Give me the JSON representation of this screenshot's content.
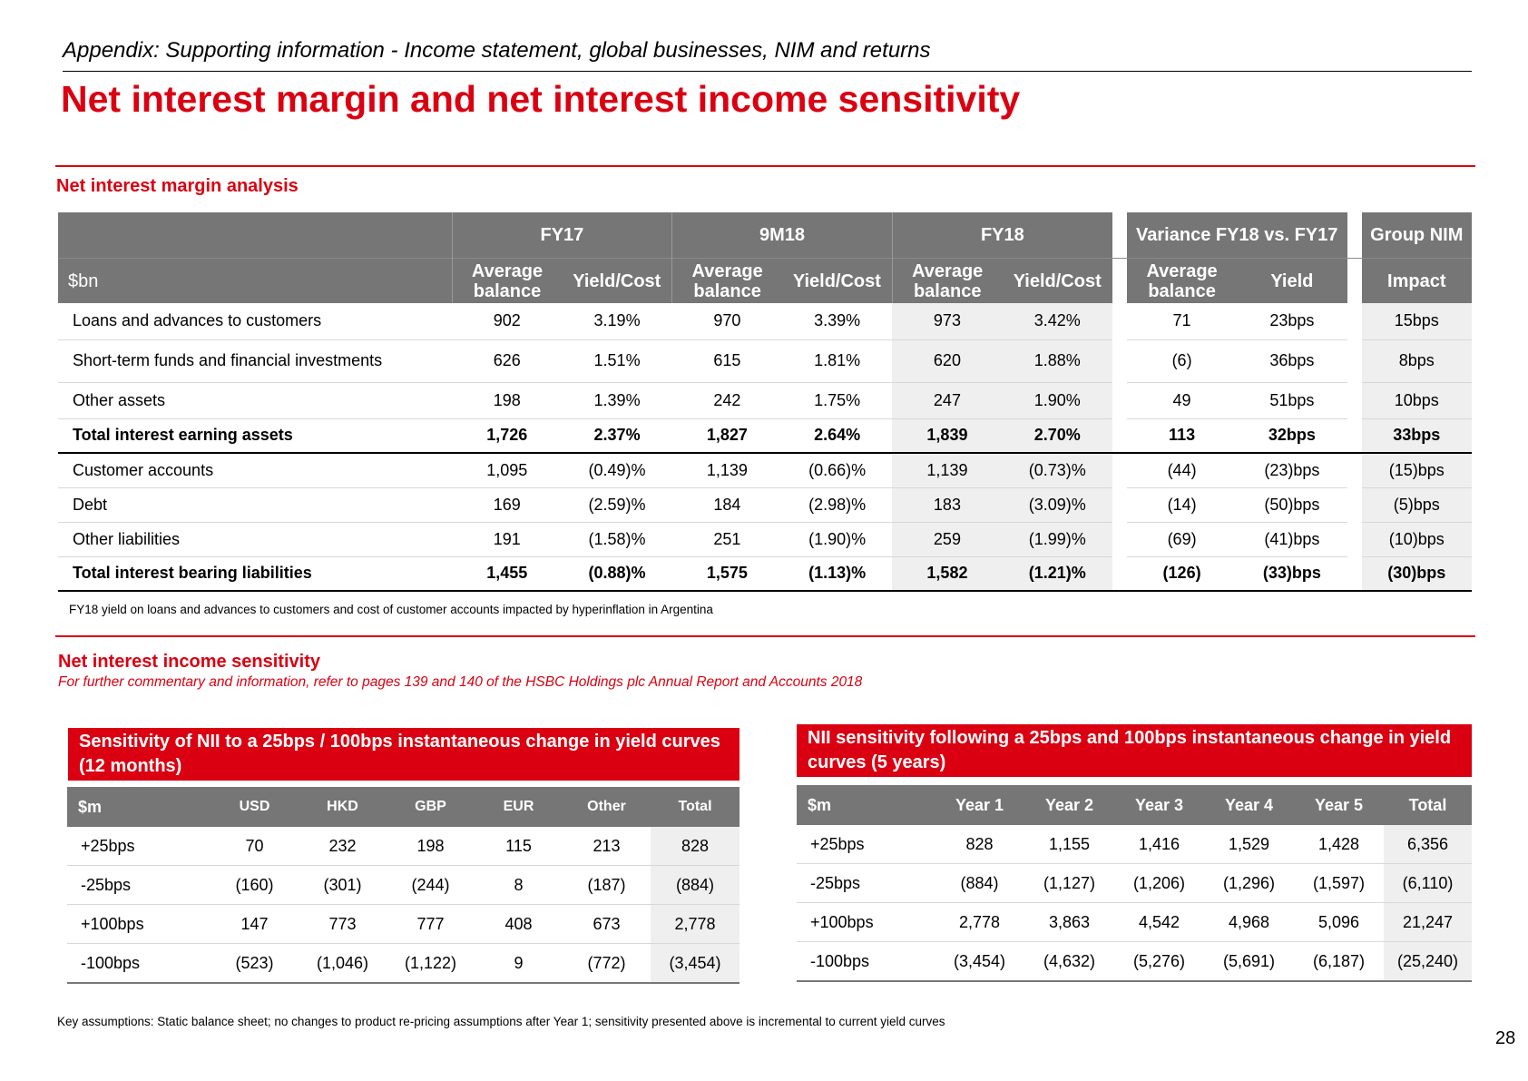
{
  "header": {
    "appendix": "Appendix: Supporting information - Income statement, global businesses, NIM and returns",
    "title": "Net interest margin and net interest income sensitivity"
  },
  "nim": {
    "section_title": "Net interest margin analysis",
    "unit": "$bn",
    "groups": [
      "FY17",
      "9M18",
      "FY18"
    ],
    "variance_title": "Variance FY18 vs. FY17",
    "group_nim": "Group NIM",
    "sub_headers": {
      "avg_balance": "Average balance",
      "yield_cost": "Yield/Cost",
      "yield": "Yield",
      "impact": "Impact"
    },
    "rows": [
      {
        "label": "Loans and advances to customers",
        "bold": false,
        "values": [
          "902",
          "3.19%",
          "970",
          "3.39%",
          "973",
          "3.42%",
          "71",
          "23bps",
          "15bps"
        ]
      },
      {
        "label": "Short-term funds and financial investments",
        "bold": false,
        "values": [
          "626",
          "1.51%",
          "615",
          "1.81%",
          "620",
          "1.88%",
          "(6)",
          "36bps",
          "8bps"
        ]
      },
      {
        "label": "Other assets",
        "bold": false,
        "values": [
          "198",
          "1.39%",
          "242",
          "1.75%",
          "247",
          "1.90%",
          "49",
          "51bps",
          "10bps"
        ]
      },
      {
        "label": "Total interest earning assets",
        "bold": true,
        "values": [
          "1,726",
          "2.37%",
          "1,827",
          "2.64%",
          "1,839",
          "2.70%",
          "113",
          "32bps",
          "33bps"
        ]
      },
      {
        "label": "Customer accounts",
        "bold": false,
        "values": [
          "1,095",
          "(0.49)%",
          "1,139",
          "(0.66)%",
          "1,139",
          "(0.73)%",
          "(44)",
          "(23)bps",
          "(15)bps"
        ]
      },
      {
        "label": "Debt",
        "bold": false,
        "values": [
          "169",
          "(2.59)%",
          "184",
          "(2.98)%",
          "183",
          "(3.09)%",
          "(14)",
          "(50)bps",
          "(5)bps"
        ]
      },
      {
        "label": "Other liabilities",
        "bold": false,
        "values": [
          "191",
          "(1.58)%",
          "251",
          "(1.90)%",
          "259",
          "(1.99)%",
          "(69)",
          "(41)bps",
          "(10)bps"
        ]
      },
      {
        "label": "Total interest bearing liabilities",
        "bold": true,
        "values": [
          "1,455",
          "(0.88)%",
          "1,575",
          "(1.13)%",
          "1,582",
          "(1.21)%",
          "(126)",
          "(33)bps",
          "(30)bps"
        ]
      }
    ],
    "footnote": "FY18 yield on loans and advances to customers and cost of customer accounts impacted by hyperinflation in Argentina"
  },
  "nii": {
    "section_title": "Net interest income sensitivity",
    "subtitle": "For further commentary and information, refer to pages 139 and 140 of the HSBC Holdings plc Annual Report and Accounts 2018",
    "left": {
      "title": "Sensitivity of NII to a 25bps / 100bps instantaneous change in yield curves (12 months)",
      "columns": [
        "$m",
        "USD",
        "HKD",
        "GBP",
        "EUR",
        "Other",
        "Total"
      ],
      "rows": [
        [
          "+25bps",
          "70",
          "232",
          "198",
          "115",
          "213",
          "828"
        ],
        [
          "-25bps",
          "(160)",
          "(301)",
          "(244)",
          "8",
          "(187)",
          "(884)"
        ],
        [
          "+100bps",
          "147",
          "773",
          "777",
          "408",
          "673",
          "2,778"
        ],
        [
          "-100bps",
          "(523)",
          "(1,046)",
          "(1,122)",
          "9",
          "(772)",
          "(3,454)"
        ]
      ]
    },
    "right": {
      "title": "NII sensitivity following a 25bps and 100bps instantaneous change in yield curves (5 years)",
      "columns": [
        "$m",
        "Year 1",
        "Year 2",
        "Year 3",
        "Year 4",
        "Year 5",
        "Total"
      ],
      "rows": [
        [
          "+25bps",
          "828",
          "1,155",
          "1,416",
          "1,529",
          "1,428",
          "6,356"
        ],
        [
          "-25bps",
          "(884)",
          "(1,127)",
          "(1,206)",
          "(1,296)",
          "(1,597)",
          "(6,110)"
        ],
        [
          "+100bps",
          "2,778",
          "3,863",
          "4,542",
          "4,968",
          "5,096",
          "21,247"
        ],
        [
          "-100bps",
          "(3,454)",
          "(4,632)",
          "(5,276)",
          "(5,691)",
          "(6,187)",
          "(25,240)"
        ]
      ]
    }
  },
  "footer": {
    "key_assumptions": "Key assumptions: Static balance sheet; no changes to product re-pricing assumptions after Year 1; sensitivity presented above is incremental to current yield curves",
    "page_number": "28"
  },
  "colors": {
    "brand_red": "#db0011",
    "header_gray": "#767676",
    "shade": "#efefef"
  }
}
